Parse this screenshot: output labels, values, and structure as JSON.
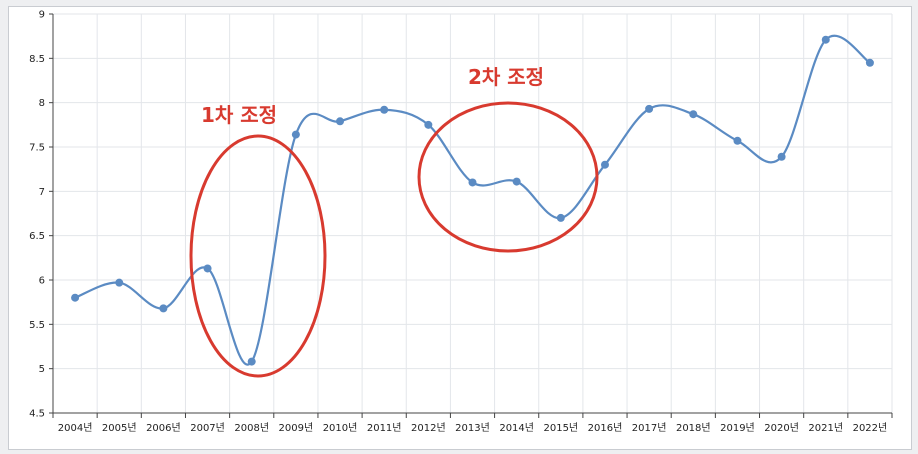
{
  "chart_data": {
    "type": "line",
    "categories": [
      "2004년",
      "2005년",
      "2006년",
      "2007년",
      "2008년",
      "2009년",
      "2010년",
      "2011년",
      "2012년",
      "2013년",
      "2014년",
      "2015년",
      "2016년",
      "2017년",
      "2018년",
      "2019년",
      "2020년",
      "2021년",
      "2022년"
    ],
    "series": [
      {
        "values": [
          5.8,
          5.97,
          5.68,
          6.13,
          5.08,
          7.64,
          7.79,
          7.92,
          7.75,
          7.1,
          7.11,
          6.7,
          7.3,
          7.93,
          7.87,
          7.57,
          7.39,
          8.71,
          8.45
        ]
      }
    ],
    "yticks": [
      "4.5",
      "5",
      "5.5",
      "6",
      "6.5",
      "7",
      "7.5",
      "8",
      "8.5",
      "9"
    ],
    "ylim": [
      4.5,
      9
    ],
    "grid": true,
    "line_color": "#5b8bc3",
    "annotations": [
      {
        "text": "1차 조정",
        "color": "#d83a2f"
      },
      {
        "text": "2차 조정",
        "color": "#d83a2f"
      }
    ]
  }
}
